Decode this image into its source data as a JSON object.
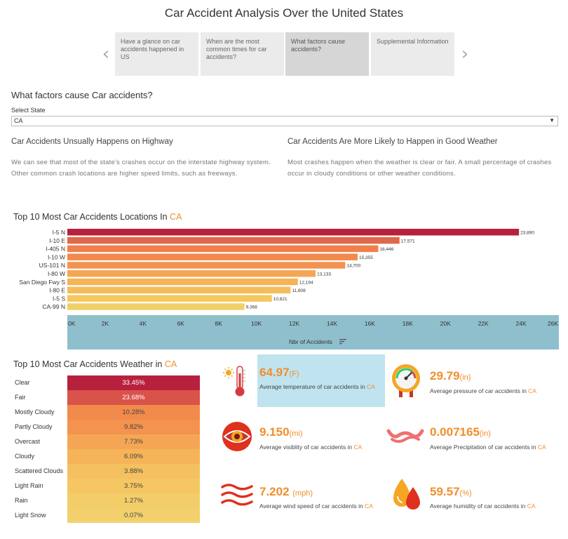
{
  "title": "Car Accident Analysis Over the United States",
  "story_tabs": [
    {
      "label": "Have a glance on car accidents happened in US"
    },
    {
      "label": "When are the most common times for car accidents?"
    },
    {
      "label": "What factors cause accidents?"
    },
    {
      "label": "Supplemental Information"
    }
  ],
  "section_title": "What factors cause Car accidents?",
  "state_filter": {
    "label": "Select State",
    "value": "CA"
  },
  "insights": [
    {
      "heading": "Car Accidents Unsually Happens on Highway",
      "body": "We can see that most of the state's crashes occur on the interstate highway system. Other common crash locations are higher speed limits, such as freeways."
    },
    {
      "heading": "Car Accidents Are More Likely to Happen in Good Weather",
      "body": "Most crashes happen when the weather is clear or fair.  A small percentage of crashes occur in cloudy conditions or other weather conditions."
    }
  ],
  "location_chart_title": "Top 10 Most Car Accidents Locations In ",
  "weather_chart_title": "Top 10 Most Car Accidents Weather in ",
  "state_highlight": "CA",
  "chart_data": [
    {
      "type": "bar",
      "orientation": "horizontal",
      "title": "Top 10 Most Car Accidents Locations In CA",
      "xlabel": "Nbr of Accidents",
      "xlim": [
        0,
        26000
      ],
      "xticks": [
        0,
        2000,
        4000,
        6000,
        8000,
        10000,
        12000,
        14000,
        16000,
        18000,
        20000,
        22000,
        24000,
        26000
      ],
      "xtick_labels": [
        "0K",
        "2K",
        "4K",
        "6K",
        "8K",
        "10K",
        "12K",
        "14K",
        "16K",
        "18K",
        "20K",
        "22K",
        "24K",
        "26K"
      ],
      "categories": [
        "I-5 N",
        "I-10 E",
        "I-405 N",
        "I-10 W",
        "US-101 N",
        "I-80 W",
        "San Diego Fwy S",
        "I-80 E",
        "I-5 S",
        "CA-99 N"
      ],
      "values": [
        23890,
        17571,
        16446,
        15355,
        14700,
        13133,
        12194,
        11808,
        10821,
        9368
      ],
      "value_labels": [
        "23,890",
        "17,571",
        "16,446",
        "15,355",
        "14,700",
        "13,133",
        "12,194",
        "11,808",
        "10,821",
        "9,368"
      ],
      "colors": [
        "#b8213e",
        "#e0684a",
        "#f07f4a",
        "#f28a4c",
        "#f3934f",
        "#f5a654",
        "#f5b457",
        "#f5bc5b",
        "#f5c75f",
        "#f1d06a"
      ]
    },
    {
      "type": "table",
      "title": "Top 10 Most Car Accidents Weather in CA",
      "categories": [
        "Clear",
        "Fair",
        "Mostly Cloudy",
        "Partly Cloudy",
        "Overcast",
        "Cloudy",
        "Scattered Clouds",
        "Light Rain",
        "Rain",
        "Light Snow"
      ],
      "values": [
        33.45,
        23.68,
        10.28,
        9.82,
        7.73,
        6.09,
        3.88,
        3.75,
        1.27,
        0.07
      ],
      "value_labels": [
        "33.45%",
        "23.68%",
        "10.28%",
        "9.82%",
        "7.73%",
        "6.09%",
        "3.88%",
        "3.75%",
        "1.27%",
        "0.07%"
      ],
      "colors": [
        "#b8213e",
        "#d9534a",
        "#f28a4c",
        "#f3934f",
        "#f5a654",
        "#f5b457",
        "#f5c060",
        "#f5c662",
        "#f3ce68",
        "#f2d06b"
      ]
    }
  ],
  "kpis": [
    {
      "value": "64.97",
      "unit": "(F)",
      "desc": "Average temperature of  car accidents in ",
      "icon": "thermometer-icon"
    },
    {
      "value": "29.79",
      "unit": "(in)",
      "desc": "Average pressure of car accidents in ",
      "icon": "pressure-gauge-icon"
    },
    {
      "value": "9.150",
      "unit": "(mi)",
      "desc": "Average visiblity of  car accidents in ",
      "icon": "eye-icon"
    },
    {
      "value": "0.007165",
      "unit": "(in)",
      "desc": "Average Precipitation of car accidents in ",
      "icon": "precipitation-wave-icon"
    },
    {
      "value": "7.202 ",
      "unit": "(mph)",
      "desc": "Average wind speed of car accidents in ",
      "icon": "wind-icon"
    },
    {
      "value": "59.57",
      "unit": "(%)",
      "desc": "Average humidity of car accidents  in ",
      "icon": "humidity-drop-icon"
    }
  ],
  "colors": {
    "accent": "#f28e2b",
    "axis_band": "#8fbfcd",
    "kpi_highlight": "#bfe3ef"
  }
}
